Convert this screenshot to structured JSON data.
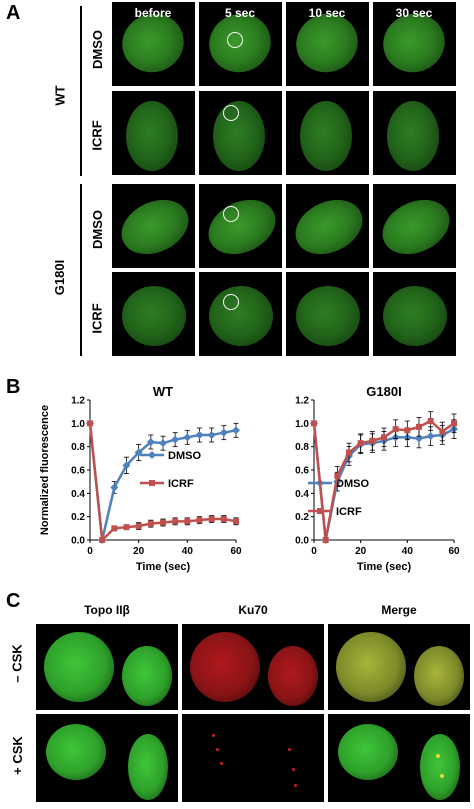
{
  "panel_a": {
    "label": "A",
    "columns": [
      "before",
      "5 sec",
      "10 sec",
      "30 sec"
    ],
    "groups": [
      {
        "name": "WT",
        "rows": [
          "DMSO",
          "ICRF"
        ]
      },
      {
        "name": "G180I",
        "rows": [
          "DMSO",
          "ICRF"
        ]
      }
    ]
  },
  "panel_b": {
    "label": "B"
  },
  "panel_c": {
    "label": "C",
    "columns": [
      "Topo IIβ",
      "Ku70",
      "Merge"
    ],
    "rows": [
      "– CSK",
      "+ CSK"
    ]
  },
  "chart_data": [
    {
      "type": "line",
      "title": "WT",
      "xlabel": "Time (sec)",
      "ylabel": "Normalized fluorescence",
      "xlim": [
        0,
        60
      ],
      "ylim": [
        0,
        1.2
      ],
      "xticks": [
        "0",
        "20",
        "40",
        "60"
      ],
      "yticks": [
        "0.0",
        "0.2",
        "0.4",
        "0.6",
        "0.8",
        "1.0",
        "1.2"
      ],
      "legend_position": "right",
      "series": [
        {
          "name": "DMSO",
          "color": "#4f81bd",
          "marker": "diamond",
          "x": [
            0,
            5,
            10,
            15,
            20,
            25,
            30,
            35,
            40,
            45,
            50,
            55,
            60
          ],
          "y": [
            1.0,
            0.0,
            0.45,
            0.64,
            0.75,
            0.84,
            0.83,
            0.86,
            0.88,
            0.9,
            0.9,
            0.92,
            0.94
          ],
          "err": [
            0,
            0,
            0.05,
            0.07,
            0.07,
            0.06,
            0.06,
            0.06,
            0.06,
            0.06,
            0.06,
            0.06,
            0.06
          ]
        },
        {
          "name": "ICRF",
          "color": "#c0504d",
          "marker": "square",
          "x": [
            0,
            5,
            10,
            15,
            20,
            25,
            30,
            35,
            40,
            45,
            50,
            55,
            60
          ],
          "y": [
            1.0,
            0.0,
            0.1,
            0.11,
            0.12,
            0.14,
            0.15,
            0.16,
            0.16,
            0.17,
            0.18,
            0.18,
            0.16
          ],
          "err": [
            0,
            0,
            0.02,
            0.02,
            0.03,
            0.03,
            0.03,
            0.03,
            0.03,
            0.03,
            0.03,
            0.03,
            0.03
          ]
        }
      ]
    },
    {
      "type": "line",
      "title": "G180I",
      "xlabel": "Time (sec)",
      "ylabel": "",
      "xlim": [
        0,
        60
      ],
      "ylim": [
        0,
        1.2
      ],
      "xticks": [
        "0",
        "20",
        "40",
        "60"
      ],
      "yticks": [
        "0.0",
        "0.2",
        "0.4",
        "0.6",
        "0.8",
        "1.0",
        "1.2"
      ],
      "legend_position": "center",
      "series": [
        {
          "name": "DMSO",
          "color": "#4f81bd",
          "marker": "diamond",
          "x": [
            0,
            5,
            10,
            15,
            20,
            25,
            30,
            35,
            40,
            45,
            50,
            55,
            60
          ],
          "y": [
            1.0,
            0.0,
            0.5,
            0.72,
            0.82,
            0.83,
            0.85,
            0.88,
            0.88,
            0.87,
            0.89,
            0.9,
            0.95
          ],
          "err": [
            0,
            0,
            0.08,
            0.08,
            0.08,
            0.08,
            0.08,
            0.08,
            0.08,
            0.08,
            0.08,
            0.08,
            0.08
          ]
        },
        {
          "name": "ICRF",
          "color": "#c0504d",
          "marker": "square",
          "x": [
            0,
            5,
            10,
            15,
            20,
            25,
            30,
            35,
            40,
            45,
            50,
            55,
            60
          ],
          "y": [
            1.0,
            0.0,
            0.55,
            0.75,
            0.83,
            0.85,
            0.88,
            0.95,
            0.94,
            0.97,
            1.02,
            0.93,
            1.0
          ],
          "err": [
            0,
            0,
            0.08,
            0.08,
            0.08,
            0.08,
            0.08,
            0.08,
            0.08,
            0.08,
            0.08,
            0.08,
            0.08
          ]
        }
      ]
    }
  ]
}
